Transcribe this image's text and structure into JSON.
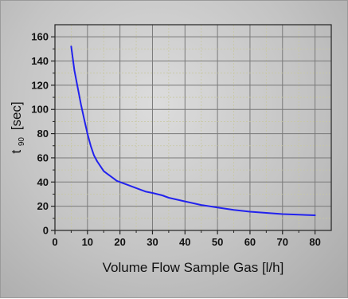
{
  "chart_data": {
    "type": "line",
    "xlabel": "Volume Flow Sample Gas [l/h]",
    "ylabel_main": "t",
    "ylabel_sub": "90",
    "ylabel_unit": "[sec]",
    "xlim": [
      0,
      85
    ],
    "ylim": [
      0,
      170
    ],
    "x_ticks": [
      0,
      10,
      20,
      30,
      40,
      50,
      60,
      70,
      80
    ],
    "y_ticks": [
      0,
      20,
      40,
      60,
      80,
      100,
      120,
      140,
      160
    ],
    "grid": true,
    "series_color": "#2222ee",
    "series": [
      {
        "x": [
          5,
          6,
          7,
          8,
          9,
          10,
          11,
          12,
          13,
          14,
          15,
          16,
          17,
          18,
          19,
          20,
          22,
          25,
          28,
          30,
          33,
          35,
          40,
          45,
          50,
          55,
          60,
          65,
          70,
          75,
          80
        ],
        "y": [
          152,
          132,
          118,
          104,
          92,
          80,
          70,
          62,
          57,
          53,
          49,
          47,
          45,
          43,
          41,
          40,
          38,
          35,
          32,
          31,
          29,
          27,
          24,
          21,
          19,
          17,
          15.5,
          14.5,
          13.5,
          13,
          12.5
        ]
      }
    ]
  }
}
